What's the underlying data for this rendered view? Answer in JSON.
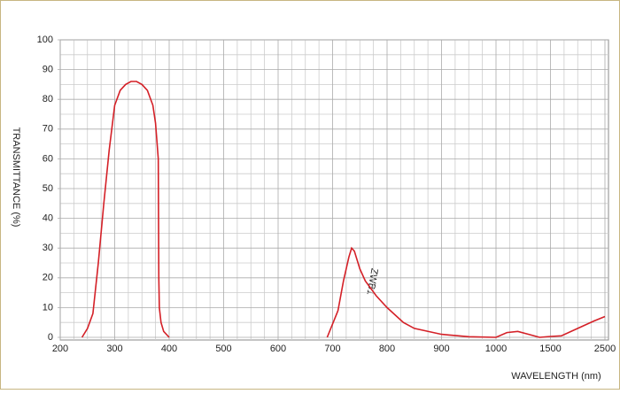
{
  "chart_data": {
    "type": "line",
    "xlabel": "WAVELENGTH (nm)",
    "ylabel": "TRANSMITTANCE  (%)",
    "annotation": "ZWB1",
    "xlim": [
      200,
      2500
    ],
    "xticks": [
      200,
      300,
      400,
      500,
      600,
      700,
      800,
      900,
      1000,
      1500,
      2500
    ],
    "ylim": [
      0,
      100
    ],
    "yticks": [
      0,
      10,
      20,
      30,
      40,
      50,
      60,
      70,
      80,
      90,
      100
    ],
    "grid": true,
    "series": [
      {
        "name": "ZWB1",
        "color": "#d42027",
        "x": [
          240,
          250,
          260,
          270,
          280,
          290,
          300,
          310,
          320,
          330,
          340,
          350,
          360,
          370,
          375,
          380,
          381,
          382,
          385,
          390,
          400,
          670,
          690,
          710,
          720,
          730,
          735,
          740,
          750,
          760,
          780,
          800,
          830,
          850,
          900,
          950,
          1000,
          1100,
          1200,
          1300,
          1400,
          1500,
          1700,
          2000,
          2300,
          2500
        ],
        "values": [
          0,
          3,
          8,
          25,
          45,
          63,
          78,
          83,
          85,
          86,
          86,
          85,
          83,
          78,
          72,
          60,
          20,
          10,
          5,
          2,
          0,
          null,
          0,
          9,
          19,
          27,
          30,
          29,
          23,
          19,
          14,
          10,
          5,
          3,
          1,
          0.2,
          0,
          1.6,
          2,
          1,
          0,
          0.3,
          0.5,
          3,
          5.5,
          7
        ]
      }
    ]
  }
}
